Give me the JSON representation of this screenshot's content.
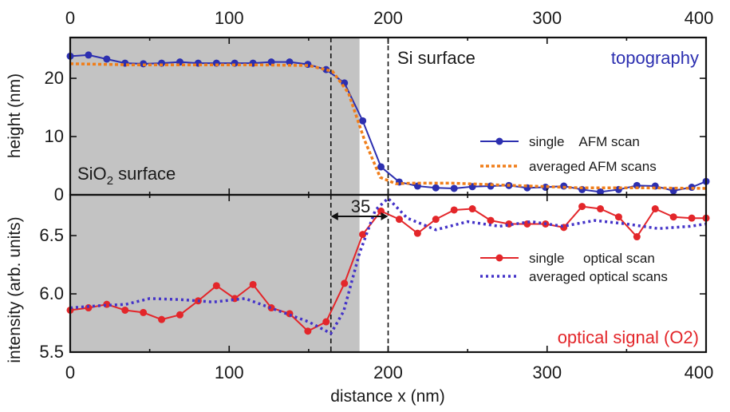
{
  "colors": {
    "shade": "#c3c3c3",
    "afm_single": "#2c2fb0",
    "afm_avg": "#f07e1a",
    "opt_single": "#e3262a",
    "opt_avg": "#4433c8",
    "topography_label": "#2c2fb0",
    "optical_label": "#e3262a",
    "axis": "#111111"
  },
  "chart_data": [
    {
      "type": "line",
      "panel": "top",
      "xlabel": "",
      "ylabel": "height (nm)",
      "xlim": [
        0,
        400
      ],
      "ylim": [
        0,
        27
      ],
      "xticks": [
        "0",
        "100",
        "200",
        "300",
        "400"
      ],
      "yticks": [
        {
          "value": 0,
          "label": "0"
        },
        {
          "value": 10,
          "label": "10"
        },
        {
          "value": 20,
          "label": "20"
        }
      ],
      "shaded_region": [
        0,
        182
      ],
      "vlines": [
        164,
        200
      ],
      "annotations": {
        "top_right": "topography",
        "si": "Si surface",
        "sio2_main": "SiO",
        "sio2_sub": "2",
        "sio2_rest": " surface"
      },
      "legend": {
        "position": "right",
        "entries": [
          "single    AFM scan",
          "averaged AFM scans"
        ]
      },
      "series": [
        {
          "name": "single AFM scan",
          "style": "line-markers",
          "color_key": "afm_single",
          "x": [
            0,
            11.5,
            23,
            34.5,
            46,
            57.5,
            69,
            80.5,
            92,
            103.5,
            115,
            126.5,
            138,
            149.5,
            161,
            172.5,
            184,
            195.5,
            207,
            218.5,
            230,
            241.5,
            253,
            264.5,
            276,
            287.5,
            299,
            310.5,
            322,
            333.5,
            345,
            356.5,
            368,
            379.5,
            391,
            400
          ],
          "y": [
            23.8,
            24.0,
            23.3,
            22.6,
            22.5,
            22.6,
            22.8,
            22.6,
            22.6,
            22.6,
            22.6,
            22.8,
            22.8,
            22.4,
            21.5,
            19.2,
            12.7,
            4.8,
            2.2,
            1.5,
            1.2,
            1.1,
            1.4,
            1.5,
            1.6,
            1.2,
            1.3,
            1.5,
            0.9,
            0.5,
            0.9,
            1.6,
            1.5,
            0.7,
            1.3,
            2.3
          ]
        },
        {
          "name": "averaged AFM scans",
          "style": "dotted",
          "color_key": "afm_avg",
          "x": [
            0,
            40,
            80,
            120,
            150,
            165,
            175,
            185,
            195,
            205,
            215,
            240,
            280,
            320,
            360,
            400
          ],
          "y": [
            22.5,
            22.3,
            22.3,
            22.3,
            22.2,
            21.2,
            17.5,
            9.5,
            3.0,
            1.9,
            2.0,
            2.0,
            1.6,
            1.2,
            1.2,
            1.1
          ]
        }
      ]
    },
    {
      "type": "line",
      "panel": "bottom",
      "xlabel": "distance x (nm)",
      "ylabel": "intensity (arb. units)",
      "xlim": [
        0,
        400
      ],
      "ylim": [
        5.5,
        6.85
      ],
      "xticks": [
        "0",
        "100",
        "200",
        "300",
        "400"
      ],
      "yticks": [
        {
          "value": 5.5,
          "label": "5.5"
        },
        {
          "value": 6.0,
          "label": "6.0"
        },
        {
          "value": 6.5,
          "label": "6.5"
        }
      ],
      "shaded_region": [
        0,
        182
      ],
      "vlines": [
        164,
        200
      ],
      "dimension": {
        "from": 164,
        "to": 200,
        "label": "35"
      },
      "annotations": {
        "bottom_right": "optical signal (O2)"
      },
      "legend": {
        "position": "right",
        "entries": [
          "single     optical scan",
          "averaged optical scans"
        ]
      },
      "series": [
        {
          "name": "single optical scan",
          "style": "line-markers",
          "color_key": "opt_single",
          "x": [
            0,
            11.5,
            23,
            34.5,
            46,
            57.5,
            69,
            80.5,
            92,
            103.5,
            115,
            126.5,
            138,
            149.5,
            161,
            172.5,
            184,
            195.5,
            207,
            218.5,
            230,
            241.5,
            253,
            264.5,
            276,
            287.5,
            299,
            310.5,
            322,
            333.5,
            345,
            356.5,
            368,
            379.5,
            391,
            400
          ],
          "y": [
            5.86,
            5.88,
            5.91,
            5.86,
            5.84,
            5.78,
            5.82,
            5.94,
            6.07,
            5.96,
            6.08,
            5.88,
            5.83,
            5.68,
            5.76,
            6.09,
            6.51,
            6.71,
            6.64,
            6.52,
            6.64,
            6.72,
            6.73,
            6.63,
            6.6,
            6.6,
            6.6,
            6.57,
            6.75,
            6.73,
            6.66,
            6.49,
            6.73,
            6.66,
            6.65,
            6.65
          ]
        },
        {
          "name": "averaged optical scans",
          "style": "dotted",
          "color_key": "opt_avg",
          "x": [
            0,
            20,
            35,
            50,
            70,
            90,
            110,
            130,
            150,
            164,
            172,
            182,
            192,
            200,
            212,
            230,
            250,
            270,
            290,
            310,
            330,
            350,
            370,
            390,
            400
          ],
          "y": [
            5.88,
            5.9,
            5.91,
            5.96,
            5.95,
            5.93,
            5.96,
            5.86,
            5.76,
            5.66,
            5.85,
            6.35,
            6.72,
            6.82,
            6.65,
            6.55,
            6.62,
            6.58,
            6.62,
            6.58,
            6.63,
            6.6,
            6.56,
            6.58,
            6.6
          ]
        }
      ]
    }
  ]
}
